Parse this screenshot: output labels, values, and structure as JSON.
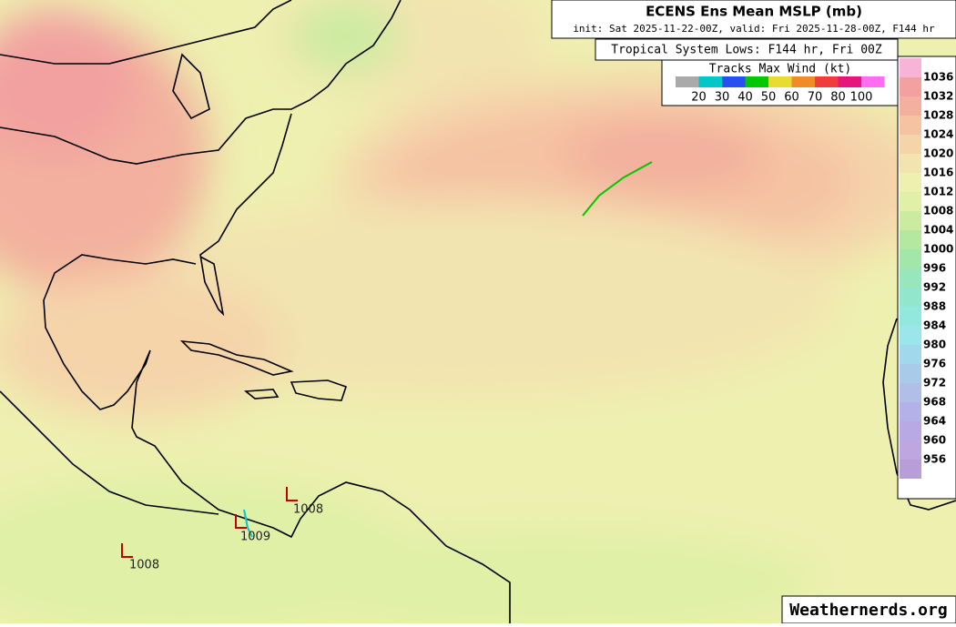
{
  "header": {
    "title": "ECENS Ens Mean MSLP (mb)",
    "subtitle": "init: Sat 2025-11-22-00Z, valid: Fri 2025-11-28-00Z, F144 hr"
  },
  "tracks_legend": {
    "heading": "Tropical System Lows: F144 hr, Fri 00Z",
    "title": "Tracks Max Wind (kt)",
    "labels": [
      20,
      30,
      40,
      50,
      60,
      70,
      80,
      100
    ],
    "colors": [
      "#aaaaaa",
      "#00c8c8",
      "#2850f0",
      "#00c800",
      "#e6dc32",
      "#f08c28",
      "#f03c3c",
      "#e6147d",
      "#ff6ef0"
    ]
  },
  "colorbar": {
    "levels": [
      1036,
      1032,
      1028,
      1024,
      1020,
      1016,
      1012,
      1008,
      1004,
      1000,
      996,
      992,
      988,
      984,
      980,
      976,
      972,
      968,
      964,
      960,
      956
    ],
    "colors": [
      "#f7b4d6",
      "#f2a0a0",
      "#f3b09e",
      "#f5c2a2",
      "#f5d4aa",
      "#f2e4b0",
      "#eef0b0",
      "#e0f0a6",
      "#cbeca0",
      "#b4e8a0",
      "#a2e6aa",
      "#98e6bc",
      "#92e6cc",
      "#92e8dc",
      "#9ae6e8",
      "#a2d8ec",
      "#aacaea",
      "#b0bee8",
      "#b2b2e8",
      "#b8a8e4",
      "#bea6e0",
      "#b89ed8"
    ]
  },
  "lows": [
    {
      "symbol": "L",
      "pressure": 1008
    },
    {
      "symbol": "L",
      "pressure": 1009
    },
    {
      "symbol": "L",
      "pressure": 1008
    }
  ],
  "watermark": "Weathernerds.org"
}
